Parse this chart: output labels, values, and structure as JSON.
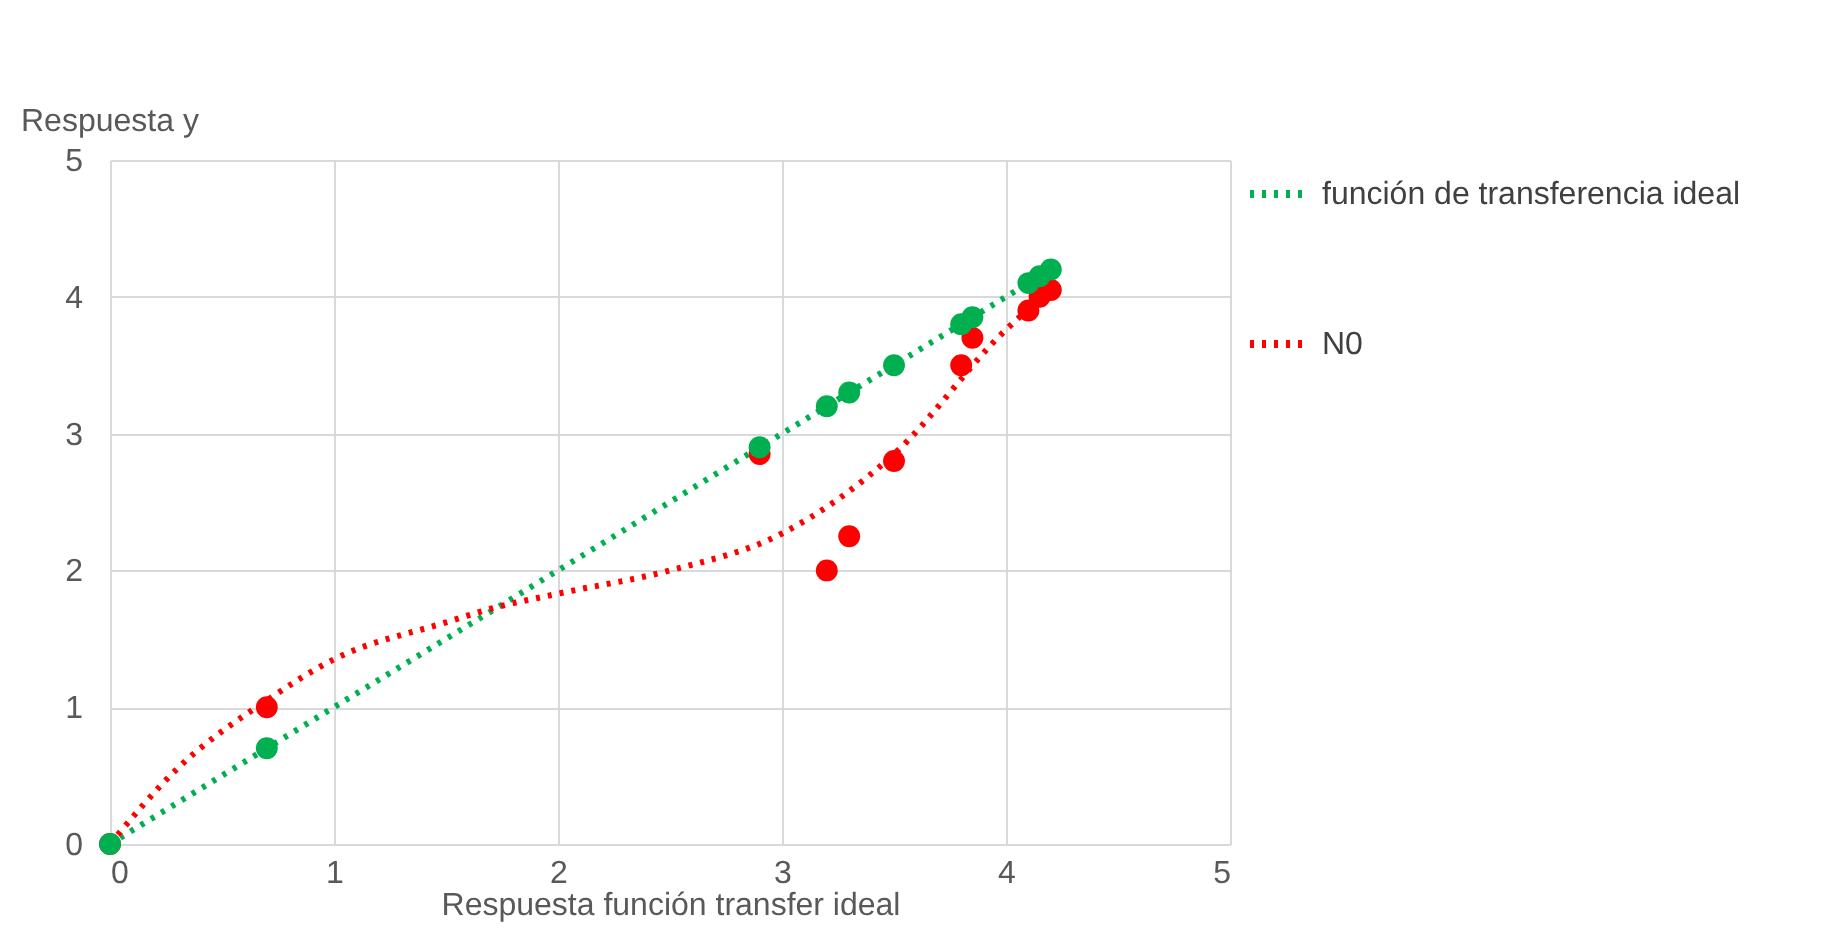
{
  "chart_data": {
    "type": "scatter",
    "xlabel": "Respuesta función transfer ideal",
    "ylabel": "Respuesta y",
    "xlim": [
      0,
      5
    ],
    "ylim": [
      0,
      5
    ],
    "xticks": [
      0,
      1,
      2,
      3,
      4,
      5
    ],
    "yticks": [
      0,
      1,
      2,
      3,
      4,
      5
    ],
    "grid": true,
    "legend": "right",
    "series": [
      {
        "marker": "circle",
        "color": "#00b050",
        "x": [
          0,
          0.7,
          2.9,
          3.2,
          3.3,
          3.5,
          3.8,
          3.85,
          4.1,
          4.15,
          4.2
        ],
        "values": [
          0,
          0.7,
          2.9,
          3.2,
          3.3,
          3.5,
          3.8,
          3.85,
          4.1,
          4.15,
          4.2
        ]
      },
      {
        "marker": "circle",
        "color": "#ff0000",
        "x": [
          0,
          0.7,
          2.9,
          3.2,
          3.3,
          3.5,
          3.8,
          3.85,
          4.1,
          4.15,
          4.2
        ],
        "values": [
          0,
          1.0,
          2.85,
          2.0,
          2.25,
          2.8,
          3.5,
          3.7,
          3.9,
          4.0,
          4.05
        ]
      },
      {
        "type": "line",
        "marker": "none",
        "name": "función de transferencia ideal",
        "color": "#00b050",
        "line_style": "dotted",
        "x": [
          0,
          4.2
        ],
        "values": [
          0,
          4.2
        ]
      },
      {
        "type": "line",
        "marker": "none",
        "name": "N0",
        "color": "#ff0000",
        "line_style": "dotted",
        "x": [
          0,
          0.3,
          0.7,
          1,
          1.5,
          1.7,
          2,
          2.5,
          3,
          3.5,
          4,
          4.2
        ],
        "values": [
          0,
          0.55,
          1.05,
          1.35,
          1.62,
          1.72,
          1.83,
          2.0,
          2.27,
          2.85,
          3.76,
          4.05
        ]
      }
    ]
  }
}
